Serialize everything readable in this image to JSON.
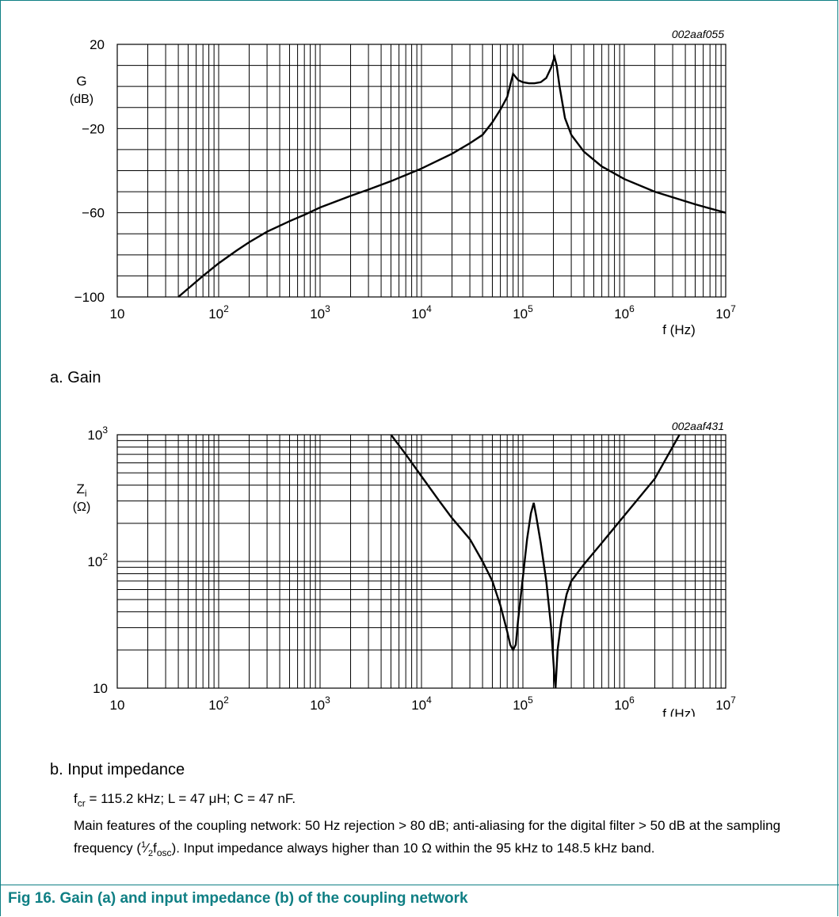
{
  "chart_data": [
    {
      "type": "line",
      "id_label": "002aaf055",
      "x_scale": "log",
      "xlim": [
        10,
        10000000
      ],
      "ylim": [
        -100,
        20
      ],
      "x_ticks": [
        "10",
        "10^2",
        "10^3",
        "10^4",
        "10^5",
        "10^6",
        "10^7"
      ],
      "y_ticks": [
        "20",
        "−20",
        "−60",
        "−100"
      ],
      "ylabel": "G",
      "ylabel_unit": "(dB)",
      "xlabel": "f (Hz)",
      "series": [
        {
          "x": [
            40,
            50,
            70,
            100,
            150,
            200,
            300,
            500,
            700,
            1000,
            2000,
            3000,
            5000,
            10000,
            20000,
            30000,
            40000,
            50000,
            60000,
            70000,
            80000,
            90000,
            100000,
            115000,
            130000,
            150000,
            170000,
            190000,
            205000,
            215000,
            230000,
            260000,
            300000,
            400000,
            600000,
            1000000,
            2000000,
            5000000,
            10000000
          ],
          "y": [
            -100,
            -96,
            -90,
            -84,
            -78,
            -74,
            -69,
            -64,
            -61,
            -57.5,
            -52,
            -49,
            -45,
            -39,
            -32,
            -27,
            -23,
            -17,
            -11,
            -5,
            6,
            3,
            2,
            1.5,
            1.5,
            2,
            4,
            9,
            14,
            10,
            0,
            -15,
            -23,
            -31,
            -38,
            -44,
            -50,
            -56,
            -60
          ]
        }
      ]
    },
    {
      "type": "line",
      "id_label": "002aaf431",
      "x_scale": "log",
      "y_scale": "log",
      "xlim": [
        10,
        10000000
      ],
      "ylim": [
        10,
        1000
      ],
      "x_ticks": [
        "10",
        "10^2",
        "10^3",
        "10^4",
        "10^5",
        "10^6",
        "10^7"
      ],
      "y_ticks": [
        "10^3",
        "10^2",
        "10"
      ],
      "ylabel": "Z_i",
      "ylabel_unit": "(Ω)",
      "xlabel": "f (Hz)",
      "series": [
        {
          "x": [
            5000,
            7000,
            10000,
            15000,
            20000,
            30000,
            40000,
            50000,
            60000,
            70000,
            75000,
            80000,
            85000,
            90000,
            100000,
            110000,
            120000,
            128000,
            135000,
            150000,
            170000,
            190000,
            205000,
            210000,
            220000,
            240000,
            270000,
            300000,
            400000,
            600000,
            1000000,
            2000000,
            3500000
          ],
          "y": [
            1000,
            700,
            470,
            300,
            220,
            150,
            100,
            70,
            45,
            28,
            22,
            20,
            22,
            35,
            75,
            150,
            240,
            290,
            230,
            140,
            70,
            30,
            12,
            10,
            20,
            35,
            55,
            70,
            95,
            140,
            230,
            450,
            1000
          ]
        }
      ]
    }
  ],
  "captions": {
    "a": "a.  Gain",
    "b": "b.  Input impedance"
  },
  "notes": {
    "line1": {
      "f": "f",
      "cr": "cr",
      "rest": " = 115.2 kHz; L = 47 μH; C = 47 nF."
    },
    "para": {
      "part1": "Main features of the coupling network: 50 Hz rejection > 80 dB; anti-aliasing for the digital filter > 50 dB at the sampling frequency (",
      "frac_num": "1",
      "frac_den": "2",
      "f": "f",
      "osc": "osc",
      "part2": "). Input impedance always higher than 10 Ω within the 95 kHz to 148.5 kHz band."
    }
  },
  "figure_title": "Fig 16.  Gain (a) and input impedance (b) of the coupling network"
}
